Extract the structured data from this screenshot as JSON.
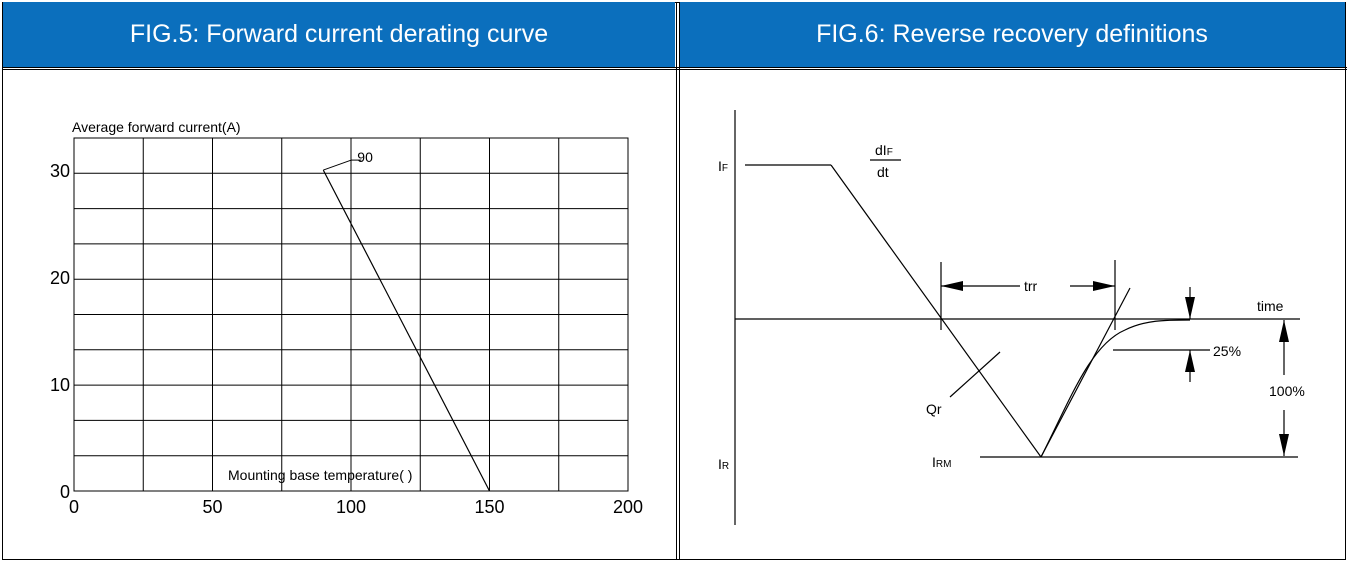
{
  "fig5": {
    "title": "FIG.5: Forward current derating curve",
    "ylabel": "Average forward current(A)",
    "xlabel": "Mounting base temperature(   )",
    "annotation": "90"
  },
  "fig6": {
    "title": "FIG.6: Reverse recovery definitions",
    "labels": {
      "if_main": "I",
      "if_sub": "F",
      "ir_main": "I",
      "ir_sub": "R",
      "irm_main": "I",
      "irm_sub": "RM",
      "didt_num_main": "dI",
      "didt_num_sub": "F",
      "didt_den": "dt",
      "trr": "trr",
      "time": "time",
      "pct25": "25%",
      "pct100": "100%",
      "qr": "Qr"
    }
  },
  "chart_data": {
    "type": "line",
    "title": "FIG.5: Forward current derating curve",
    "xlabel": "Mounting base temperature(   )",
    "ylabel": "Average forward current(A)",
    "xlim": [
      0,
      200
    ],
    "ylim": [
      0,
      33
    ],
    "xticks": [
      "0",
      "50",
      "100",
      "150",
      "200"
    ],
    "yticks": [
      "0",
      "10",
      "20",
      "30"
    ],
    "grid": true,
    "series": [
      {
        "x": [
          90,
          150
        ],
        "y": [
          30,
          0
        ]
      }
    ],
    "annotations": [
      {
        "text": "90",
        "x": 90,
        "y": 30
      }
    ]
  }
}
